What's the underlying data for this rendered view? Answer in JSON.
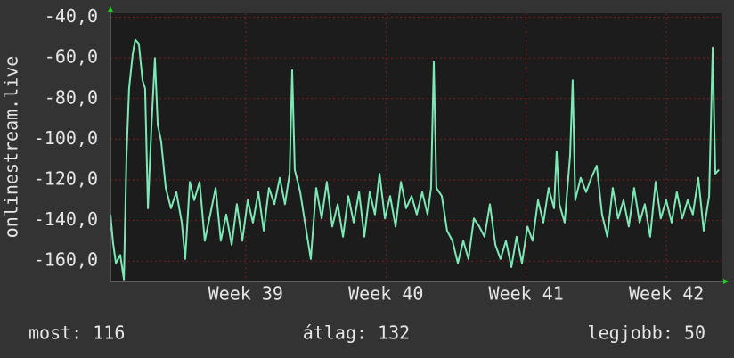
{
  "chart_data": {
    "type": "line",
    "ylabel": "onlinestream.live",
    "x": [
      0,
      0.13,
      0.27,
      0.49,
      0.67,
      0.8,
      0.93,
      1.11,
      1.24,
      1.42,
      1.6,
      1.73,
      1.87,
      2.05,
      2.22,
      2.36,
      2.53,
      2.76,
      3.02,
      3.29,
      3.56,
      3.73,
      3.96,
      4.18,
      4.45,
      4.71,
      4.98,
      5.25,
      5.51,
      5.78,
      6.05,
      6.31,
      6.58,
      6.85,
      7.11,
      7.38,
      7.65,
      7.91,
      8.18,
      8.45,
      8.71,
      8.94,
      9.07,
      9.2,
      9.47,
      9.74,
      10.0,
      10.27,
      10.54,
      10.8,
      11.07,
      11.34,
      11.61,
      11.87,
      12.14,
      12.41,
      12.67,
      12.94,
      13.2,
      13.43,
      13.7,
      13.96,
      14.23,
      14.5,
      14.76,
      15.03,
      15.29,
      15.56,
      15.83,
      16.0,
      16.14,
      16.27,
      16.54,
      16.8,
      17.07,
      17.34,
      17.61,
      17.87,
      18.14,
      18.41,
      18.67,
      18.94,
      19.21,
      19.47,
      19.74,
      20.01,
      20.27,
      20.54,
      20.81,
      21.07,
      21.34,
      21.61,
      21.87,
      22.14,
      22.27,
      22.41,
      22.67,
      22.94,
      23.07,
      23.2,
      23.47,
      23.74,
      24.0,
      24.27,
      24.54,
      24.8,
      25.07,
      25.34,
      25.61,
      25.87,
      26.14,
      26.41,
      26.67,
      26.94,
      27.21,
      27.47,
      27.74,
      28.01,
      28.27,
      28.54,
      28.81,
      29.07,
      29.34,
      29.61,
      29.88,
      30.06,
      30.19,
      30.37
    ],
    "series": [
      {
        "color": "#7de8b6",
        "values": [
          -137,
          -151,
          -161,
          -157,
          -169,
          -108,
          -75,
          -58,
          -51,
          -53,
          -71,
          -75,
          -134,
          -93,
          -60,
          -93,
          -101,
          -124,
          -134,
          -126,
          -141,
          -159,
          -121,
          -130,
          -121,
          -150,
          -137,
          -124,
          -150,
          -137,
          -152,
          -132,
          -150,
          -130,
          -141,
          -126,
          -145,
          -124,
          -132,
          -119,
          -132,
          -117,
          -66,
          -115,
          -126,
          -143,
          -159,
          -124,
          -139,
          -121,
          -143,
          -132,
          -148,
          -128,
          -141,
          -126,
          -148,
          -126,
          -137,
          -117,
          -139,
          -128,
          -143,
          -121,
          -134,
          -128,
          -137,
          -126,
          -137,
          -124,
          -62,
          -124,
          -128,
          -145,
          -150,
          -161,
          -150,
          -159,
          -139,
          -143,
          -148,
          -132,
          -152,
          -159,
          -150,
          -163,
          -148,
          -161,
          -143,
          -150,
          -130,
          -141,
          -124,
          -134,
          -106,
          -132,
          -141,
          -108,
          -71,
          -130,
          -119,
          -126,
          -119,
          -113,
          -137,
          -148,
          -124,
          -139,
          -130,
          -143,
          -124,
          -141,
          -132,
          -148,
          -121,
          -139,
          -130,
          -141,
          -126,
          -139,
          -130,
          -137,
          -119,
          -145,
          -128,
          -55,
          -117,
          -115
        ]
      }
    ],
    "xlim": [
      0,
      30.5
    ],
    "xticks": [
      {
        "value": 6.75,
        "label": "Week 39"
      },
      {
        "value": 13.75,
        "label": "Week 40"
      },
      {
        "value": 20.75,
        "label": "Week 41"
      },
      {
        "value": 27.75,
        "label": "Week 42"
      }
    ],
    "ylim": [
      -170,
      -38
    ],
    "yticks": [
      {
        "value": -160,
        "label": "-160,0"
      },
      {
        "value": -140,
        "label": "-140,0"
      },
      {
        "value": -120,
        "label": "-120,0"
      },
      {
        "value": -100,
        "label": "-100,0"
      },
      {
        "value": -80,
        "label": "-80,0"
      },
      {
        "value": -60,
        "label": "-60,0"
      },
      {
        "value": -40,
        "label": "-40,0"
      }
    ],
    "grid": true
  },
  "footer": [
    "most: 116",
    "átlag: 132",
    "legjobb: 50"
  ]
}
